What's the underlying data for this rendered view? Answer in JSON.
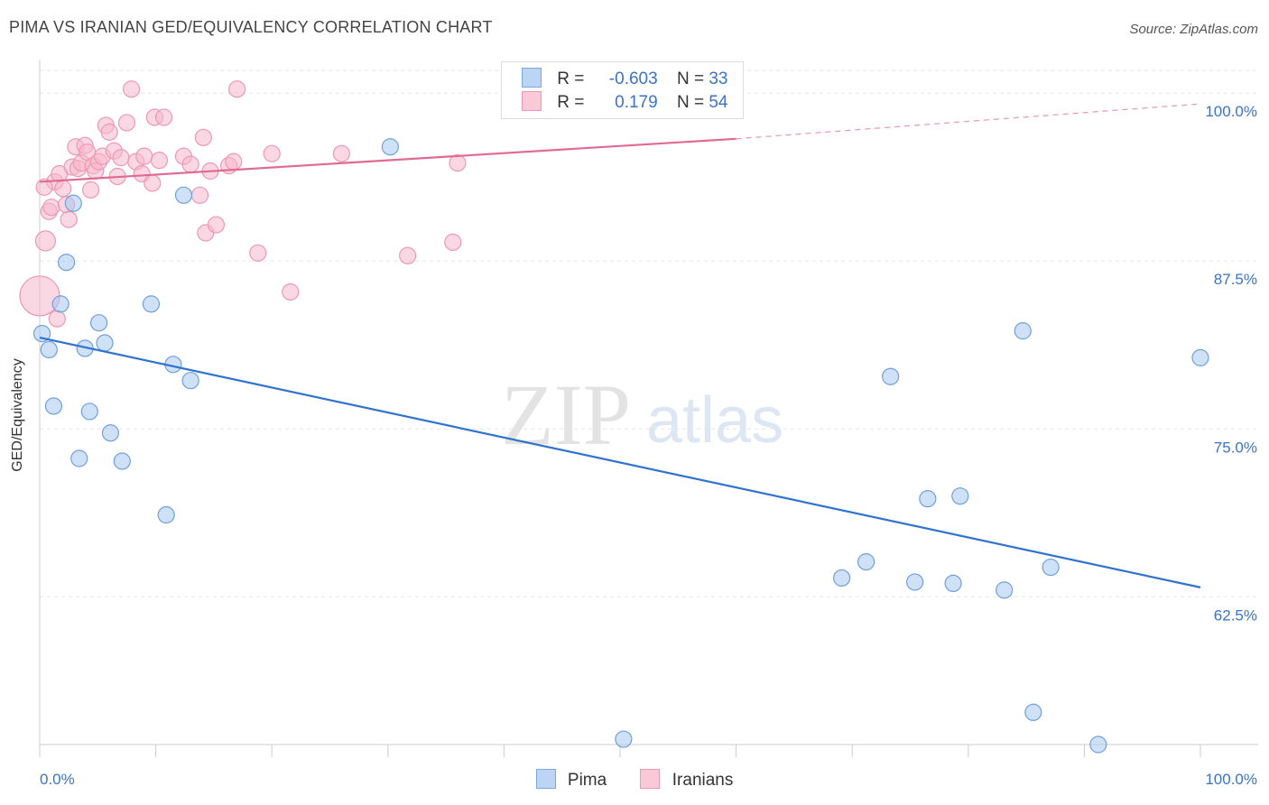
{
  "header": {
    "title": "PIMA VS IRANIAN GED/EQUIVALENCY CORRELATION CHART",
    "source": "Source: ZipAtlas.com"
  },
  "watermark": {
    "zip": "ZIP",
    "atlas": "atlas"
  },
  "legend": {
    "rows": [
      {
        "r_label": "R =",
        "r_value": "-0.603",
        "n_label": "N =",
        "n_value": "33",
        "color": "#a8c8f0"
      },
      {
        "r_label": "R =",
        "r_value": "0.179",
        "n_label": "N =",
        "n_value": "54",
        "color": "#f5b8cc"
      }
    ]
  },
  "bottom_legend": [
    {
      "label": "Pima",
      "color": "#a8c8f0"
    },
    {
      "label": "Iranians",
      "color": "#f5b8cc"
    }
  ],
  "chart_data": {
    "type": "scatter",
    "title": "PIMA VS IRANIAN GED/EQUIVALENCY CORRELATION CHART",
    "xlabel": "",
    "ylabel": "GED/Equivalency",
    "xlim": [
      0,
      100
    ],
    "ylim": [
      51.5,
      102.5
    ],
    "x_tick_labels": [
      "0.0%",
      "100.0%"
    ],
    "y_ticks": [
      {
        "value": 62.5,
        "label": "62.5%"
      },
      {
        "value": 75.0,
        "label": "75.0%"
      },
      {
        "value": 87.5,
        "label": "87.5%"
      },
      {
        "value": 100.0,
        "label": "100.0%"
      }
    ],
    "grid": true,
    "legend_position": "top-center",
    "series": [
      {
        "name": "Pima",
        "color": "#a8c8f0",
        "stroke": "#6fa0dc",
        "line_color": "#2f72cf",
        "trend": {
          "x": [
            0,
            100
          ],
          "y": [
            81.8,
            63.2
          ]
        },
        "points": [
          [
            0.2,
            82.1
          ],
          [
            0.8,
            80.9
          ],
          [
            1.2,
            76.7
          ],
          [
            2.3,
            87.4
          ],
          [
            1.8,
            84.3
          ],
          [
            2.9,
            91.8
          ],
          [
            3.4,
            72.8
          ],
          [
            3.9,
            81.0
          ],
          [
            4.3,
            76.3
          ],
          [
            5.1,
            82.9
          ],
          [
            5.6,
            81.4
          ],
          [
            6.1,
            74.7
          ],
          [
            7.1,
            72.6
          ],
          [
            9.6,
            84.3
          ],
          [
            10.9,
            68.6
          ],
          [
            11.5,
            79.8
          ],
          [
            12.4,
            92.4
          ],
          [
            13.0,
            78.6
          ],
          [
            30.2,
            96.0
          ],
          [
            50.3,
            51.9
          ],
          [
            69.1,
            63.9
          ],
          [
            71.2,
            65.1
          ],
          [
            73.3,
            78.9
          ],
          [
            75.4,
            63.6
          ],
          [
            76.5,
            69.8
          ],
          [
            78.7,
            63.5
          ],
          [
            79.3,
            70.0
          ],
          [
            83.1,
            63.0
          ],
          [
            84.7,
            82.3
          ],
          [
            85.6,
            53.9
          ],
          [
            87.1,
            64.7
          ],
          [
            91.2,
            51.5
          ],
          [
            100.0,
            80.3
          ]
        ]
      },
      {
        "name": "Iranians",
        "color": "#f5b8cc",
        "stroke": "#ee98b3",
        "line_color": "#e06a92",
        "trend": {
          "x": [
            0,
            60
          ],
          "y": [
            93.4,
            96.6
          ]
        },
        "trend_dashed": {
          "x": [
            60,
            100
          ],
          "y": [
            96.6,
            99.2
          ]
        },
        "points": [
          [
            0.0,
            84.9
          ],
          [
            0.5,
            89.0
          ],
          [
            0.8,
            91.2
          ],
          [
            1.0,
            91.5
          ],
          [
            1.3,
            93.4
          ],
          [
            1.7,
            94.0
          ],
          [
            2.0,
            92.9
          ],
          [
            2.3,
            91.7
          ],
          [
            2.5,
            90.6
          ],
          [
            2.8,
            94.5
          ],
          [
            3.1,
            96.0
          ],
          [
            3.3,
            94.4
          ],
          [
            3.6,
            94.8
          ],
          [
            3.9,
            96.1
          ],
          [
            4.1,
            95.6
          ],
          [
            4.4,
            92.8
          ],
          [
            4.6,
            94.6
          ],
          [
            4.8,
            94.2
          ],
          [
            5.1,
            94.9
          ],
          [
            5.4,
            95.3
          ],
          [
            5.7,
            97.6
          ],
          [
            6.0,
            97.1
          ],
          [
            6.4,
            95.7
          ],
          [
            6.7,
            93.8
          ],
          [
            7.0,
            95.2
          ],
          [
            7.5,
            97.8
          ],
          [
            7.9,
            100.3
          ],
          [
            8.3,
            94.9
          ],
          [
            8.8,
            94.0
          ],
          [
            9.0,
            95.3
          ],
          [
            9.7,
            93.3
          ],
          [
            9.9,
            98.2
          ],
          [
            10.3,
            95.0
          ],
          [
            10.7,
            98.2
          ],
          [
            12.4,
            95.3
          ],
          [
            13.0,
            94.7
          ],
          [
            13.8,
            92.4
          ],
          [
            14.1,
            96.7
          ],
          [
            14.3,
            89.6
          ],
          [
            14.7,
            94.2
          ],
          [
            15.2,
            90.2
          ],
          [
            16.3,
            94.6
          ],
          [
            16.7,
            94.9
          ],
          [
            17.0,
            100.3
          ],
          [
            18.8,
            88.1
          ],
          [
            20.0,
            95.5
          ],
          [
            21.6,
            85.2
          ],
          [
            26.0,
            95.5
          ],
          [
            31.7,
            87.9
          ],
          [
            35.6,
            88.9
          ],
          [
            36.0,
            94.8
          ],
          [
            1.5,
            83.2
          ],
          [
            53.2,
            100.3
          ],
          [
            0.4,
            93.0
          ]
        ]
      }
    ]
  }
}
